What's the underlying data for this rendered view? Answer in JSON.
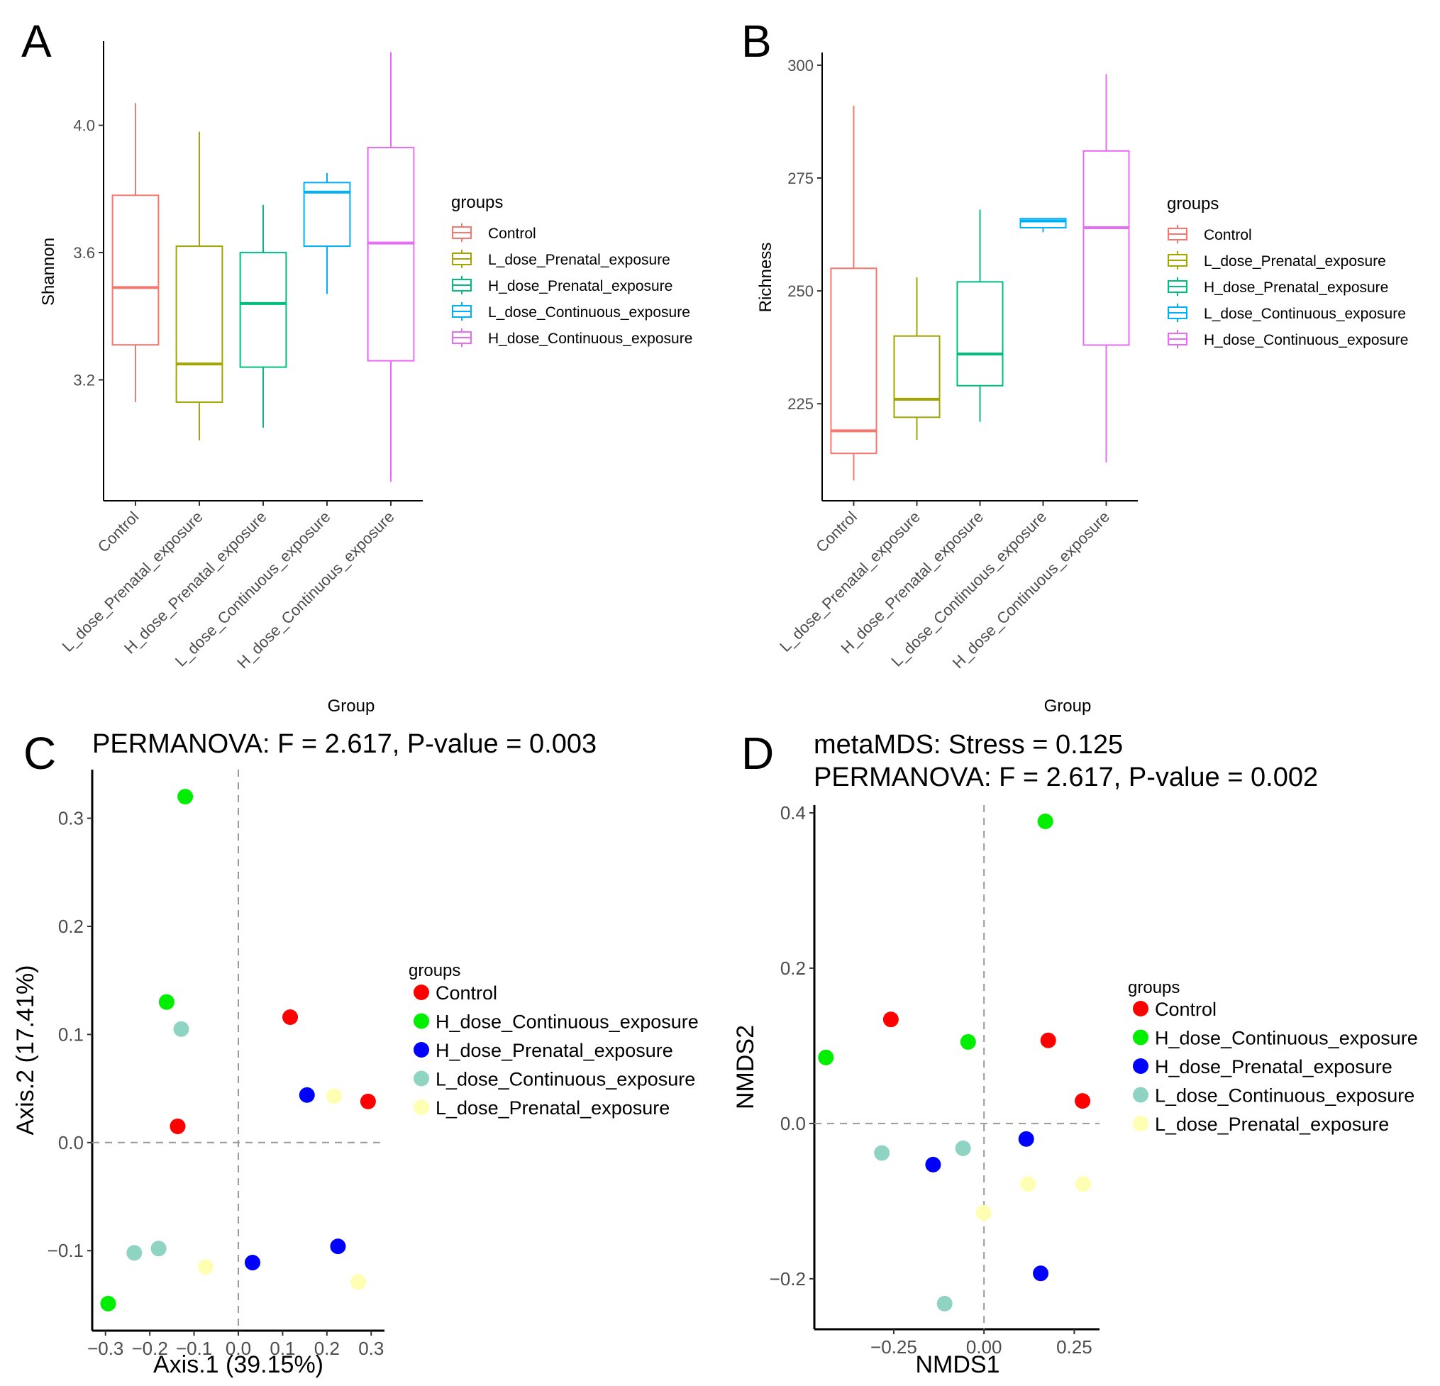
{
  "colors": {
    "Control": "#F8766D",
    "L_dose_Prenatal_exposure": "#A3A500",
    "H_dose_Prenatal_exposure": "#00BF7D",
    "L_dose_Continuous_exposure": "#00B0F6",
    "H_dose_Continuous_exposure": "#E76BF3",
    "pt_Control": "#FF0000",
    "pt_H_dose_Continuous_exposure": "#00EE00",
    "pt_H_dose_Prenatal_exposure": "#0000FF",
    "pt_L_dose_Continuous_exposure": "#8FD3C3",
    "pt_L_dose_Prenatal_exposure": "#FFFFB3"
  },
  "chart_data": [
    {
      "panel": "A",
      "type": "boxplot",
      "xlabel": "Group",
      "ylabel": "Shannon",
      "ylim": [
        2.82,
        4.26
      ],
      "yticks": [
        "3.2",
        "3.6",
        "4.0"
      ],
      "categories": [
        "Control",
        "L_dose_Prenatal_exposure",
        "H_dose_Prenatal_exposure",
        "L_dose_Continuous_exposure",
        "H_dose_Continuous_exposure"
      ],
      "boxes": [
        {
          "min": 3.13,
          "q1": 3.31,
          "median": 3.49,
          "q3": 3.78,
          "max": 4.07
        },
        {
          "min": 3.01,
          "q1": 3.13,
          "median": 3.25,
          "q3": 3.62,
          "max": 3.98
        },
        {
          "min": 3.05,
          "q1": 3.24,
          "median": 3.44,
          "q3": 3.6,
          "max": 3.75
        },
        {
          "min": 3.47,
          "q1": 3.62,
          "median": 3.79,
          "q3": 3.82,
          "max": 3.85
        },
        {
          "min": 2.88,
          "q1": 3.26,
          "median": 3.63,
          "q3": 3.93,
          "max": 4.23
        }
      ],
      "legend_title": "groups",
      "legend": [
        "Control",
        "L_dose_Prenatal_exposure",
        "H_dose_Prenatal_exposure",
        "L_dose_Continuous_exposure",
        "H_dose_Continuous_exposure"
      ]
    },
    {
      "panel": "B",
      "type": "boxplot",
      "xlabel": "Group",
      "ylabel": "Richness",
      "ylim": [
        203.5,
        302.5
      ],
      "yticks": [
        "225",
        "250",
        "275",
        "300"
      ],
      "categories": [
        "Control",
        "L_dose_Prenatal_exposure",
        "H_dose_Prenatal_exposure",
        "L_dose_Continuous_exposure",
        "H_dose_Continuous_exposure"
      ],
      "boxes": [
        {
          "min": 208,
          "q1": 214,
          "median": 219,
          "q3": 255,
          "max": 291
        },
        {
          "min": 217,
          "q1": 222,
          "median": 226,
          "q3": 240,
          "max": 253
        },
        {
          "min": 221,
          "q1": 229,
          "median": 236,
          "q3": 252,
          "max": 268
        },
        {
          "min": 263,
          "q1": 264,
          "median": 265.5,
          "q3": 266,
          "max": 266
        },
        {
          "min": 212,
          "q1": 238,
          "median": 264,
          "q3": 281,
          "max": 298
        }
      ],
      "legend_title": "groups",
      "legend": [
        "Control",
        "L_dose_Prenatal_exposure",
        "H_dose_Prenatal_exposure",
        "L_dose_Continuous_exposure",
        "H_dose_Continuous_exposure"
      ]
    },
    {
      "panel": "C",
      "type": "scatter",
      "title": "PERMANOVA: F = 2.617, P-value = 0.003",
      "xlabel": "Axis.1 (39.15%)",
      "ylabel": "Axis.2 (17.41%)",
      "xlim": [
        -0.33,
        0.33
      ],
      "ylim": [
        -0.174,
        0.345
      ],
      "xticks": [
        "−0.3",
        "−0.2",
        "−0.1",
        "0.0",
        "0.1",
        "0.2",
        "0.3"
      ],
      "yticks": [
        "−0.1",
        "0.0",
        "0.1",
        "0.2",
        "0.3"
      ],
      "legend_title": "groups",
      "legend": [
        "Control",
        "H_dose_Continuous_exposure",
        "H_dose_Prenatal_exposure",
        "L_dose_Continuous_exposure",
        "L_dose_Prenatal_exposure"
      ],
      "series": [
        {
          "name": "Control",
          "points": [
            [
              -0.137,
              0.015
            ],
            [
              0.117,
              0.116
            ],
            [
              0.293,
              0.038
            ]
          ]
        },
        {
          "name": "H_dose_Continuous_exposure",
          "points": [
            [
              -0.12,
              0.32
            ],
            [
              -0.162,
              0.13
            ],
            [
              -0.294,
              -0.149
            ]
          ]
        },
        {
          "name": "H_dose_Prenatal_exposure",
          "points": [
            [
              0.155,
              0.044
            ],
            [
              0.225,
              -0.096
            ],
            [
              0.032,
              -0.111
            ]
          ]
        },
        {
          "name": "L_dose_Continuous_exposure",
          "points": [
            [
              -0.129,
              0.105
            ],
            [
              -0.18,
              -0.098
            ],
            [
              -0.235,
              -0.102
            ]
          ]
        },
        {
          "name": "L_dose_Prenatal_exposure",
          "points": [
            [
              0.216,
              0.043
            ],
            [
              -0.074,
              -0.115
            ],
            [
              0.271,
              -0.129
            ]
          ]
        }
      ]
    },
    {
      "panel": "D",
      "type": "scatter",
      "title": "metaMDS: Stress = 0.125",
      "subtitle": "PERMANOVA: F = 2.617, P-value = 0.002",
      "xlabel": "NMDS1",
      "ylabel": "NMDS2",
      "xlim": [
        -0.47,
        0.32
      ],
      "ylim": [
        -0.265,
        0.41
      ],
      "xticks": [
        "−0.25",
        "0.00",
        "0.25"
      ],
      "yticks": [
        "−0.2",
        "0.0",
        "0.2",
        "0.4"
      ],
      "legend_title": "groups",
      "legend": [
        "Control",
        "H_dose_Continuous_exposure",
        "H_dose_Prenatal_exposure",
        "L_dose_Continuous_exposure",
        "L_dose_Prenatal_exposure"
      ],
      "series": [
        {
          "name": "Control",
          "points": [
            [
              -0.258,
              0.134
            ],
            [
              0.178,
              0.107
            ],
            [
              0.273,
              0.029
            ]
          ]
        },
        {
          "name": "H_dose_Continuous_exposure",
          "points": [
            [
              0.17,
              0.389
            ],
            [
              -0.044,
              0.105
            ],
            [
              -0.438,
              0.085
            ]
          ]
        },
        {
          "name": "H_dose_Prenatal_exposure",
          "points": [
            [
              0.117,
              -0.02
            ],
            [
              -0.141,
              -0.053
            ],
            [
              0.157,
              -0.193
            ]
          ]
        },
        {
          "name": "L_dose_Continuous_exposure",
          "points": [
            [
              -0.283,
              -0.038
            ],
            [
              -0.058,
              -0.032
            ],
            [
              -0.109,
              -0.232
            ]
          ]
        },
        {
          "name": "L_dose_Prenatal_exposure",
          "points": [
            [
              0.122,
              -0.078
            ],
            [
              0.275,
              -0.078
            ],
            [
              -0.001,
              -0.115
            ]
          ]
        }
      ]
    }
  ]
}
